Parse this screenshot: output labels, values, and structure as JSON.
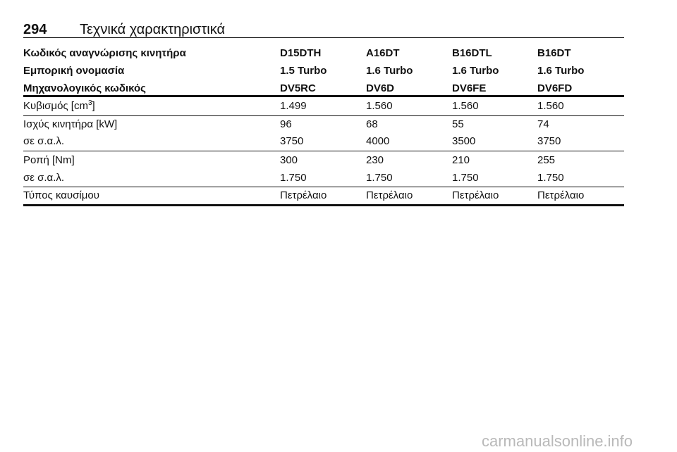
{
  "header": {
    "page_number": "294",
    "title": "Τεχνικά χαρακτηριστικά"
  },
  "table": {
    "header_rows": [
      [
        "Κωδικός αναγνώρισης κινητήρα",
        "D15DTH",
        "A16DT",
        "B16DTL",
        "B16DT"
      ],
      [
        "Εμπορική ονομασία",
        "1.5 Turbo",
        "1.6 Turbo",
        "1.6 Turbo",
        "1.6 Turbo"
      ],
      [
        "Μηχανολογικός κωδικός",
        "DV5RC",
        "DV6D",
        "DV6FE",
        "DV6FD"
      ]
    ],
    "rows": [
      {
        "label": "Κυβισμός [cm",
        "label_sup": "3",
        "label_end": "]",
        "values": [
          "1.499",
          "1.560",
          "1.560",
          "1.560"
        ]
      },
      {
        "label": "Ισχύς κινητήρα [kW]",
        "values": [
          "96",
          "68",
          "55",
          "74"
        ]
      },
      {
        "label": "σε σ.α.λ.",
        "values": [
          "3750",
          "4000",
          "3500",
          "3750"
        ]
      },
      {
        "label": "Ροπή [Nm]",
        "values": [
          "300",
          "230",
          "210",
          "255"
        ]
      },
      {
        "label": "σε σ.α.λ.",
        "values": [
          "1.750",
          "1.750",
          "1.750",
          "1.750"
        ]
      },
      {
        "label": "Τύπος καυσίμου",
        "values": [
          "Πετρέλαιο",
          "Πετρέλαιο",
          "Πετρέλαιο",
          "Πετρέλαιο"
        ]
      }
    ]
  },
  "watermark": "carmanualsonline.info"
}
